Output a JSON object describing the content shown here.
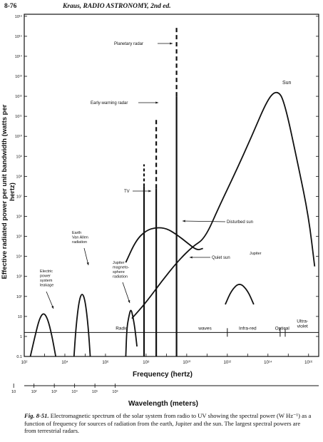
{
  "header": {
    "page_number": "8-76",
    "running_title": "Kraus, RADIO ASTRONOMY, 2nd ed."
  },
  "chart_data": {
    "type": "line",
    "xlabel": "Frequency (hertz)",
    "ylabel": "Effective radiated power  per unit bandwidth (watts per hertz)",
    "x_scale": "log",
    "y_scale": "log",
    "x_ticks": [
      "10²",
      "10⁴",
      "10⁶",
      "10⁸",
      "10¹⁰",
      "10¹²",
      "10¹⁴",
      "10¹⁶"
    ],
    "x_tick_exponents": [
      2,
      4,
      6,
      8,
      10,
      12,
      14,
      16
    ],
    "y_ticks": [
      "0.1",
      "1",
      "10",
      "10²",
      "10³",
      "10⁴",
      "10⁵",
      "10⁶",
      "10⁷",
      "10⁸",
      "10⁹",
      "10¹⁰",
      "10¹¹",
      "10¹²",
      "10¹³",
      "10¹⁴",
      "10¹⁵",
      "10¹⁶"
    ],
    "y_tick_exponents": [
      -1,
      0,
      1,
      2,
      3,
      4,
      5,
      6,
      7,
      8,
      9,
      10,
      11,
      12,
      13,
      14,
      15,
      16
    ],
    "wavelength_axis": {
      "label": "Wavelength (meters)",
      "ticks": [
        "10⁶",
        "10⁵",
        "10⁴",
        "10³",
        "10²",
        "10",
        "1",
        "10⁻¹",
        "10⁻²",
        "10⁻³",
        "10⁻⁴",
        "10⁻⁵",
        "10⁻⁶",
        "10⁻⁷",
        "10⁻⁸"
      ],
      "tick_exponents": [
        6.48,
        5.48,
        4.48,
        3.48,
        2.48,
        1.48,
        0.48,
        -0.52,
        -1.52,
        -2.52,
        -3.52,
        -4.52,
        -5.52,
        -6.52,
        -7.52
      ]
    },
    "bands": [
      {
        "label": "Radio",
        "x_log": 6.8
      },
      {
        "label": "waves",
        "x_log": 10.9
      },
      {
        "label": "Infra-red",
        "x_log": 13.0
      },
      {
        "label": "Optical",
        "x_log": 14.7
      },
      {
        "label": "Ultra-\nviolet",
        "x_log": 15.7
      }
    ],
    "band_boundaries_log": [
      12.0,
      14.6,
      14.85
    ],
    "baseline_level_log": 0.2,
    "series": [
      {
        "name": "Electric\npower\nsystem\nleakage",
        "points": [
          [
            2.3,
            -1
          ],
          [
            2.55,
            0.1
          ],
          [
            2.75,
            0.9
          ],
          [
            2.95,
            1.2
          ],
          [
            3.15,
            0.9
          ],
          [
            3.35,
            0.1
          ],
          [
            3.55,
            -1
          ]
        ]
      },
      {
        "name": "Earth\nVan Allen\nradiation",
        "points": [
          [
            4.45,
            -1
          ],
          [
            4.55,
            0.5
          ],
          [
            4.7,
            1.8
          ],
          [
            4.85,
            2.2
          ],
          [
            5.0,
            1.8
          ],
          [
            5.15,
            0.5
          ],
          [
            5.25,
            -1
          ]
        ]
      },
      {
        "name": "Jupiter\nmagneto-\nsphere\nradiation",
        "points": [
          [
            7.0,
            -1
          ],
          [
            7.05,
            0.4
          ],
          [
            7.15,
            1.0
          ],
          [
            7.25,
            1.4
          ],
          [
            7.35,
            1.0
          ],
          [
            7.45,
            0.4
          ],
          [
            7.55,
            -0.5
          ]
        ]
      },
      {
        "name": "TV",
        "points": [
          [
            7.9,
            -1
          ],
          [
            7.9,
            7.5
          ]
        ],
        "dashed_top": [
          [
            7.9,
            7.5
          ],
          [
            7.9,
            8.6
          ]
        ]
      },
      {
        "name": "Early-warning radar",
        "points": [
          [
            8.5,
            -1
          ],
          [
            8.5,
            10.9
          ]
        ],
        "dashed": true
      },
      {
        "name": "Planetary radar",
        "points": [
          [
            9.5,
            -1
          ],
          [
            9.5,
            15.5
          ]
        ],
        "dashed": true
      },
      {
        "name": "Disturbed sun",
        "points": [
          [
            7.0,
            3.7
          ],
          [
            7.5,
            4.8
          ],
          [
            8.0,
            5.3
          ],
          [
            8.5,
            5.45
          ],
          [
            9.0,
            5.4
          ],
          [
            9.5,
            5.1
          ],
          [
            10.0,
            4.7
          ],
          [
            10.5,
            4.3
          ],
          [
            10.8,
            4.4
          ]
        ]
      },
      {
        "name": "Quiet sun",
        "points": [
          [
            7.3,
            0.9
          ],
          [
            8.0,
            1.7
          ],
          [
            8.8,
            2.8
          ],
          [
            9.6,
            3.8
          ],
          [
            10.3,
            4.5
          ],
          [
            10.9,
            4.9
          ],
          [
            11.6,
            6.5
          ],
          [
            12.4,
            8.2
          ],
          [
            13.2,
            10.0
          ],
          [
            14.0,
            11.9
          ],
          [
            14.45,
            12.3
          ],
          [
            14.8,
            11.8
          ],
          [
            15.5,
            8.5
          ],
          [
            16.0,
            6.0
          ],
          [
            16.3,
            3.5
          ]
        ]
      },
      {
        "name": "Sun",
        "points": [
          [
            14.45,
            12.3
          ]
        ]
      },
      {
        "name": "Jupiter",
        "points": [
          [
            11.9,
            1.6
          ],
          [
            12.2,
            2.3
          ],
          [
            12.6,
            2.7
          ],
          [
            13.0,
            2.3
          ],
          [
            13.3,
            1.6
          ]
        ]
      }
    ],
    "labels": {
      "planetary": "Planetary radar",
      "early": "Early-warning radar",
      "tv": "TV",
      "disturbed": "Disturbed sun",
      "quiet": "Quiet sun",
      "sun": "Sun",
      "jupiter": "Jupiter",
      "jupiter_mag": [
        "Jupiter",
        "magneto-",
        "sphere",
        "radiation"
      ],
      "van_allen": [
        "Earth",
        "Van Allen",
        "radiation"
      ],
      "leakage": [
        "Electric",
        "power",
        "system",
        "leakage"
      ]
    }
  },
  "caption": {
    "figure": "Fig. 8-51.",
    "text": "Electromagnetic spectrum of the solar system from radio to UV showing the spectral power (W Hz⁻¹) as a function of frequency for sources of radiation from the earth, Jupiter and the sun.   The largest spectral powers are from terrestrial radars."
  },
  "colors": {
    "ink": "#111111",
    "paper": "#ffffff"
  }
}
